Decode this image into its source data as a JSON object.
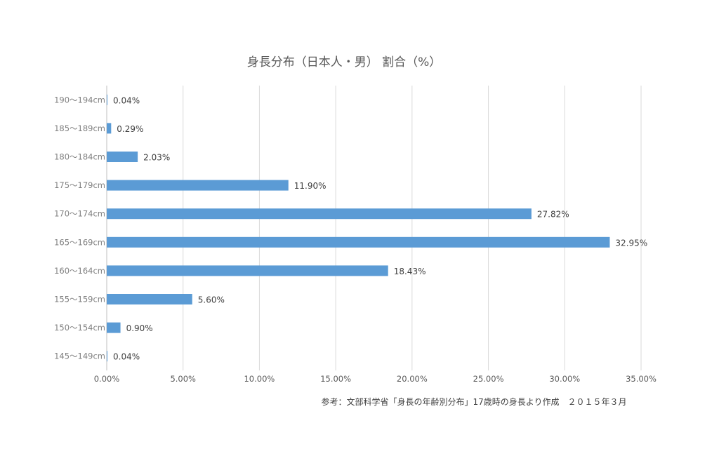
{
  "chart_data": {
    "type": "bar",
    "orientation": "horizontal",
    "title": "身長分布（日本人・男） 割合（%）",
    "categories": [
      "190～194cm",
      "185～189cm",
      "180～184cm",
      "175～179cm",
      "170～174cm",
      "165～169cm",
      "160～164cm",
      "155～159cm",
      "150～154cm",
      "145～149cm"
    ],
    "series": [
      {
        "values": [
          0.04,
          0.29,
          2.03,
          11.9,
          27.82,
          32.95,
          18.43,
          5.6,
          0.9,
          0.04
        ],
        "data_labels": [
          "0.04%",
          "0.29%",
          "2.03%",
          "11.90%",
          "27.82%",
          "32.95%",
          "18.43%",
          "5.60%",
          "0.90%",
          "0.04%"
        ],
        "color": "#5b9bd5"
      }
    ],
    "xlim": [
      0,
      35
    ],
    "x_ticks": [
      0,
      5,
      10,
      15,
      20,
      25,
      30,
      35
    ],
    "x_tick_labels": [
      "0.00%",
      "5.00%",
      "10.00%",
      "15.00%",
      "20.00%",
      "25.00%",
      "30.00%",
      "35.00%"
    ],
    "grid": "vertical",
    "legend": "none",
    "xlabel": "",
    "ylabel": ""
  },
  "source_note": "参考：文部科学省「身長の年齢別分布」17歳時の身長より作成　２０１５年３月"
}
